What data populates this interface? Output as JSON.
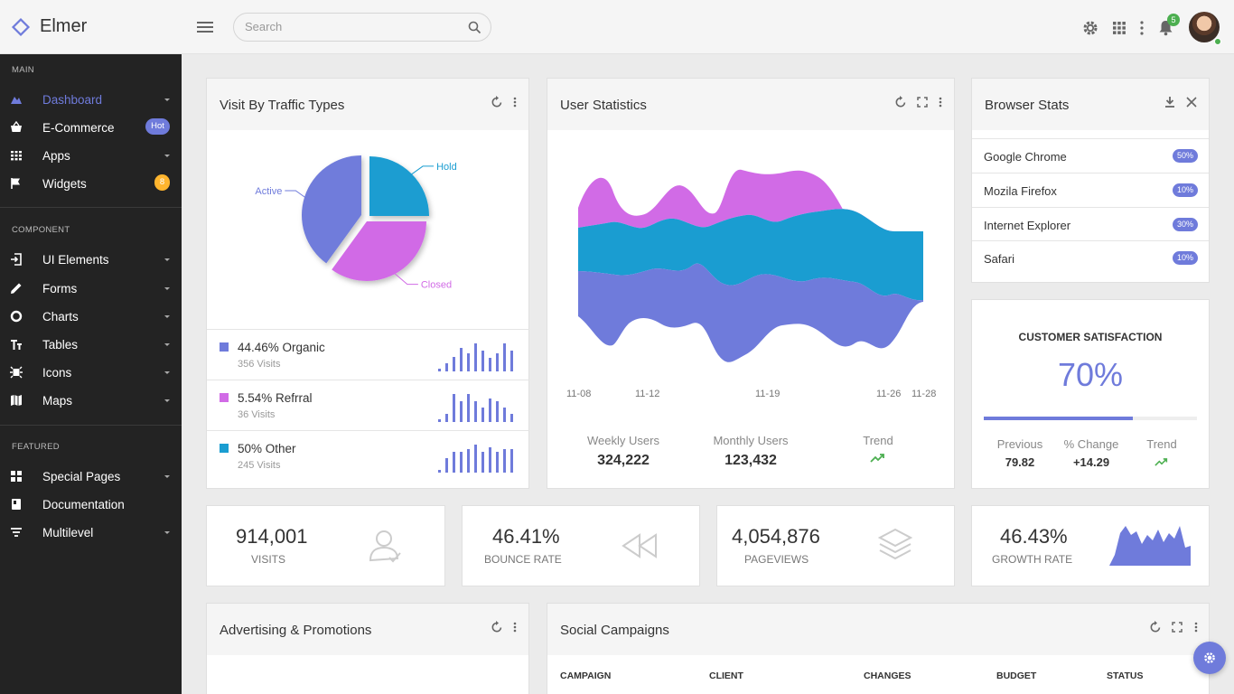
{
  "app": {
    "name": "Elmer"
  },
  "search": {
    "placeholder": "Search"
  },
  "header": {
    "notification_count": "5"
  },
  "sidebar": {
    "sections": [
      "MAIN",
      "COMPONENT",
      "FEATURED"
    ],
    "items": [
      {
        "label": "Dashboard",
        "icon": "chart-area-icon",
        "active": true
      },
      {
        "label": "E-Commerce",
        "icon": "basket-icon",
        "badge": "Hot"
      },
      {
        "label": "Apps",
        "icon": "apps-grid-icon"
      },
      {
        "label": "Widgets",
        "icon": "flag-icon",
        "badge": "8"
      },
      {
        "label": "UI Elements",
        "icon": "login-icon"
      },
      {
        "label": "Forms",
        "icon": "pencil-icon"
      },
      {
        "label": "Charts",
        "icon": "donut-chart-icon"
      },
      {
        "label": "Tables",
        "icon": "text-format-icon"
      },
      {
        "label": "Icons",
        "icon": "icons-icon"
      },
      {
        "label": "Maps",
        "icon": "map-icon"
      },
      {
        "label": "Special Pages",
        "icon": "pages-icon"
      },
      {
        "label": "Documentation",
        "icon": "book-icon"
      },
      {
        "label": "Multilevel",
        "icon": "filter-list-icon"
      }
    ]
  },
  "traffic": {
    "title": "Visit By Traffic Types",
    "pie_labels": {
      "active": "Active",
      "hold": "Hold",
      "closed": "Closed"
    },
    "legend": [
      {
        "title": "44.46% Organic",
        "sub": "356 Visits",
        "color": "#6f7bdb"
      },
      {
        "title": "5.54% Refrral",
        "sub": "36 Visits",
        "color": "#d16be6"
      },
      {
        "title": "50% Other",
        "sub": "245 Visits",
        "color": "#1a9dd1"
      }
    ]
  },
  "user_stats": {
    "title": "User Statistics",
    "x_labels": [
      "11-08",
      "11-12",
      "11-19",
      "11-26",
      "11-28"
    ],
    "weekly_label": "Weekly Users",
    "weekly_value": "324,222",
    "monthly_label": "Monthly Users",
    "monthly_value": "123,432",
    "trend_label": "Trend"
  },
  "browser_stats": {
    "title": "Browser Stats",
    "rows": [
      {
        "name": "Google Chrome",
        "pct": "50%"
      },
      {
        "name": "Mozila Firefox",
        "pct": "10%"
      },
      {
        "name": "Internet Explorer",
        "pct": "30%"
      },
      {
        "name": "Safari",
        "pct": "10%"
      }
    ]
  },
  "satisfaction": {
    "title": "CUSTOMER SATISFACTION",
    "value": "70%",
    "progress": 0.7,
    "previous_label": "Previous",
    "previous_value": "79.82",
    "change_label": "% Change",
    "change_value": "+14.29",
    "trend_label": "Trend"
  },
  "mini": [
    {
      "value": "914,001",
      "label": "VISITS",
      "icon": "user-icon"
    },
    {
      "value": "46.41%",
      "label": "BOUNCE RATE",
      "icon": "rewind-icon"
    },
    {
      "value": "4,054,876",
      "label": "PAGEVIEWS",
      "icon": "layers-icon"
    },
    {
      "value": "46.43%",
      "label": "GROWTH RATE",
      "icon": "area-chart-icon"
    }
  ],
  "advertising": {
    "title": "Advertising & Promotions"
  },
  "social": {
    "title": "Social Campaigns",
    "columns": [
      "CAMPAIGN",
      "CLIENT",
      "CHANGES",
      "BUDGET",
      "STATUS"
    ]
  },
  "colors": {
    "accent": "#6f7bdb",
    "pink": "#d16be6",
    "blue": "#1a9dd1",
    "sidebar": "#232323",
    "green": "#4caf50"
  },
  "chart_data": [
    {
      "type": "pie",
      "labels": [
        "Active",
        "Hold",
        "Closed"
      ],
      "values": [
        40,
        25,
        35
      ]
    },
    {
      "type": "area",
      "x": [
        "11-08",
        "11-12",
        "11-19",
        "11-26",
        "11-28"
      ],
      "series": [
        {
          "values": [
            3,
            5,
            4,
            6,
            2
          ]
        },
        {
          "values": [
            4,
            3,
            4,
            3,
            3
          ]
        },
        {
          "values": [
            5,
            4,
            6,
            5,
            3
          ]
        }
      ]
    }
  ]
}
